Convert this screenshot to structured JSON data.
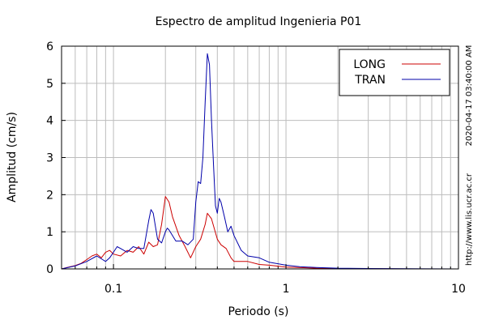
{
  "chart_data": {
    "type": "line",
    "title": "Espectro de amplitud Ingenieria P01",
    "xlabel": "Periodo (s)",
    "ylabel": "Amplitud (cm/s)",
    "x_scale": "log",
    "xlim": [
      0.05,
      10
    ],
    "ylim": [
      0,
      6
    ],
    "x_tick_labels": [
      "0.1",
      "1",
      "10"
    ],
    "x_ticks": [
      0.1,
      1,
      10
    ],
    "y_ticks": [
      0,
      1,
      2,
      3,
      4,
      5,
      6
    ],
    "grid": true,
    "legend_position": "top-right",
    "side_text": [
      "2020-04-17 03:40:00 AM",
      "http://www.lis.ucr.ac.cr"
    ],
    "series": [
      {
        "name": "LONG",
        "color": "#cc0000",
        "points": [
          [
            0.05,
            0.0
          ],
          [
            0.055,
            0.05
          ],
          [
            0.06,
            0.09
          ],
          [
            0.065,
            0.15
          ],
          [
            0.07,
            0.25
          ],
          [
            0.075,
            0.35
          ],
          [
            0.08,
            0.4
          ],
          [
            0.085,
            0.3
          ],
          [
            0.09,
            0.45
          ],
          [
            0.095,
            0.5
          ],
          [
            0.1,
            0.4
          ],
          [
            0.11,
            0.35
          ],
          [
            0.12,
            0.5
          ],
          [
            0.13,
            0.45
          ],
          [
            0.14,
            0.6
          ],
          [
            0.15,
            0.4
          ],
          [
            0.16,
            0.72
          ],
          [
            0.17,
            0.6
          ],
          [
            0.18,
            0.65
          ],
          [
            0.19,
            1.2
          ],
          [
            0.2,
            1.95
          ],
          [
            0.21,
            1.8
          ],
          [
            0.22,
            1.4
          ],
          [
            0.24,
            0.9
          ],
          [
            0.26,
            0.6
          ],
          [
            0.28,
            0.3
          ],
          [
            0.3,
            0.6
          ],
          [
            0.32,
            0.8
          ],
          [
            0.34,
            1.2
          ],
          [
            0.35,
            1.5
          ],
          [
            0.37,
            1.35
          ],
          [
            0.4,
            0.8
          ],
          [
            0.42,
            0.65
          ],
          [
            0.45,
            0.55
          ],
          [
            0.48,
            0.3
          ],
          [
            0.5,
            0.2
          ],
          [
            0.6,
            0.2
          ],
          [
            0.7,
            0.12
          ],
          [
            0.8,
            0.1
          ],
          [
            1.0,
            0.05
          ],
          [
            1.5,
            0.02
          ],
          [
            2.0,
            0.01
          ],
          [
            5.0,
            0.0
          ],
          [
            10.0,
            0.0
          ]
        ]
      },
      {
        "name": "TRAN",
        "color": "#0000aa",
        "points": [
          [
            0.05,
            0.0
          ],
          [
            0.06,
            0.08
          ],
          [
            0.07,
            0.2
          ],
          [
            0.08,
            0.35
          ],
          [
            0.09,
            0.2
          ],
          [
            0.095,
            0.3
          ],
          [
            0.1,
            0.45
          ],
          [
            0.105,
            0.6
          ],
          [
            0.11,
            0.55
          ],
          [
            0.12,
            0.45
          ],
          [
            0.13,
            0.6
          ],
          [
            0.14,
            0.55
          ],
          [
            0.15,
            0.55
          ],
          [
            0.16,
            1.3
          ],
          [
            0.165,
            1.6
          ],
          [
            0.17,
            1.5
          ],
          [
            0.18,
            0.8
          ],
          [
            0.19,
            0.7
          ],
          [
            0.2,
            1.0
          ],
          [
            0.205,
            1.1
          ],
          [
            0.21,
            1.05
          ],
          [
            0.23,
            0.75
          ],
          [
            0.25,
            0.75
          ],
          [
            0.27,
            0.65
          ],
          [
            0.29,
            0.8
          ],
          [
            0.3,
            1.8
          ],
          [
            0.31,
            2.35
          ],
          [
            0.32,
            2.3
          ],
          [
            0.33,
            3.0
          ],
          [
            0.34,
            4.5
          ],
          [
            0.35,
            5.8
          ],
          [
            0.36,
            5.5
          ],
          [
            0.37,
            4.0
          ],
          [
            0.38,
            2.8
          ],
          [
            0.39,
            1.7
          ],
          [
            0.4,
            1.5
          ],
          [
            0.41,
            1.9
          ],
          [
            0.42,
            1.8
          ],
          [
            0.44,
            1.4
          ],
          [
            0.46,
            1.0
          ],
          [
            0.48,
            1.15
          ],
          [
            0.5,
            0.9
          ],
          [
            0.55,
            0.5
          ],
          [
            0.6,
            0.35
          ],
          [
            0.7,
            0.3
          ],
          [
            0.8,
            0.18
          ],
          [
            1.0,
            0.1
          ],
          [
            1.2,
            0.06
          ],
          [
            1.5,
            0.04
          ],
          [
            2.0,
            0.02
          ],
          [
            3.0,
            0.01
          ],
          [
            10.0,
            0.0
          ]
        ]
      }
    ]
  }
}
